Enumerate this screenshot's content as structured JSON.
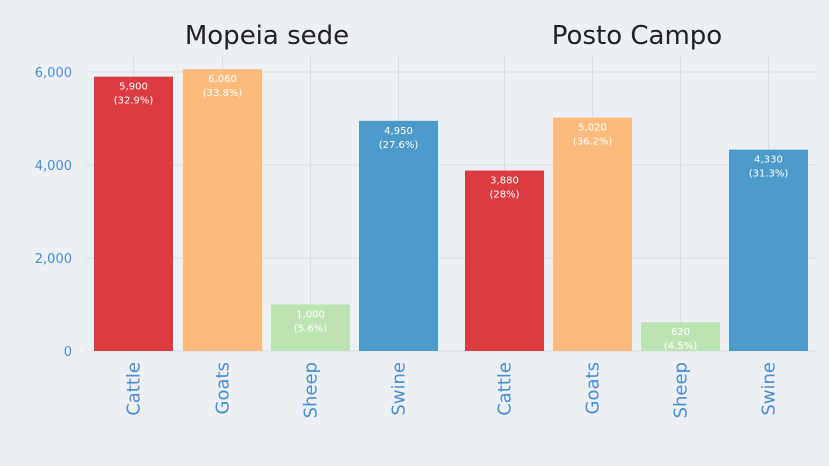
{
  "chart_data": {
    "type": "bar",
    "ylim": [
      0,
      6500
    ],
    "yticks": [
      {
        "value": 0,
        "label": "0"
      },
      {
        "value": 2000,
        "label": "2,000"
      },
      {
        "value": 4000,
        "label": "4,000"
      },
      {
        "value": 6000,
        "label": "6,000"
      }
    ],
    "grid": true,
    "colors": {
      "Cattle": "#dc3c41",
      "Goats": "#fbbb7d",
      "Sheep": "#bde3b3",
      "Swine": "#4c9ac9"
    },
    "panels": [
      {
        "title": "Mopeia sede",
        "categories": [
          "Cattle",
          "Goats",
          "Sheep",
          "Swine"
        ],
        "values": [
          5900,
          6060,
          1000,
          4950
        ],
        "value_labels": [
          "5,900",
          "6,060",
          "1,000",
          "4,950"
        ],
        "percent_labels": [
          "(32.9%)",
          "(33.8%)",
          "(5.6%)",
          "(27.6%)"
        ]
      },
      {
        "title": "Posto Campo",
        "categories": [
          "Cattle",
          "Goats",
          "Sheep",
          "Swine"
        ],
        "values": [
          3880,
          5020,
          620,
          4330
        ],
        "value_labels": [
          "3,880",
          "5,020",
          "620",
          "4,330"
        ],
        "percent_labels": [
          "(28%)",
          "(36.2%)",
          "(4.5%)",
          "(31.3%)"
        ]
      }
    ]
  }
}
